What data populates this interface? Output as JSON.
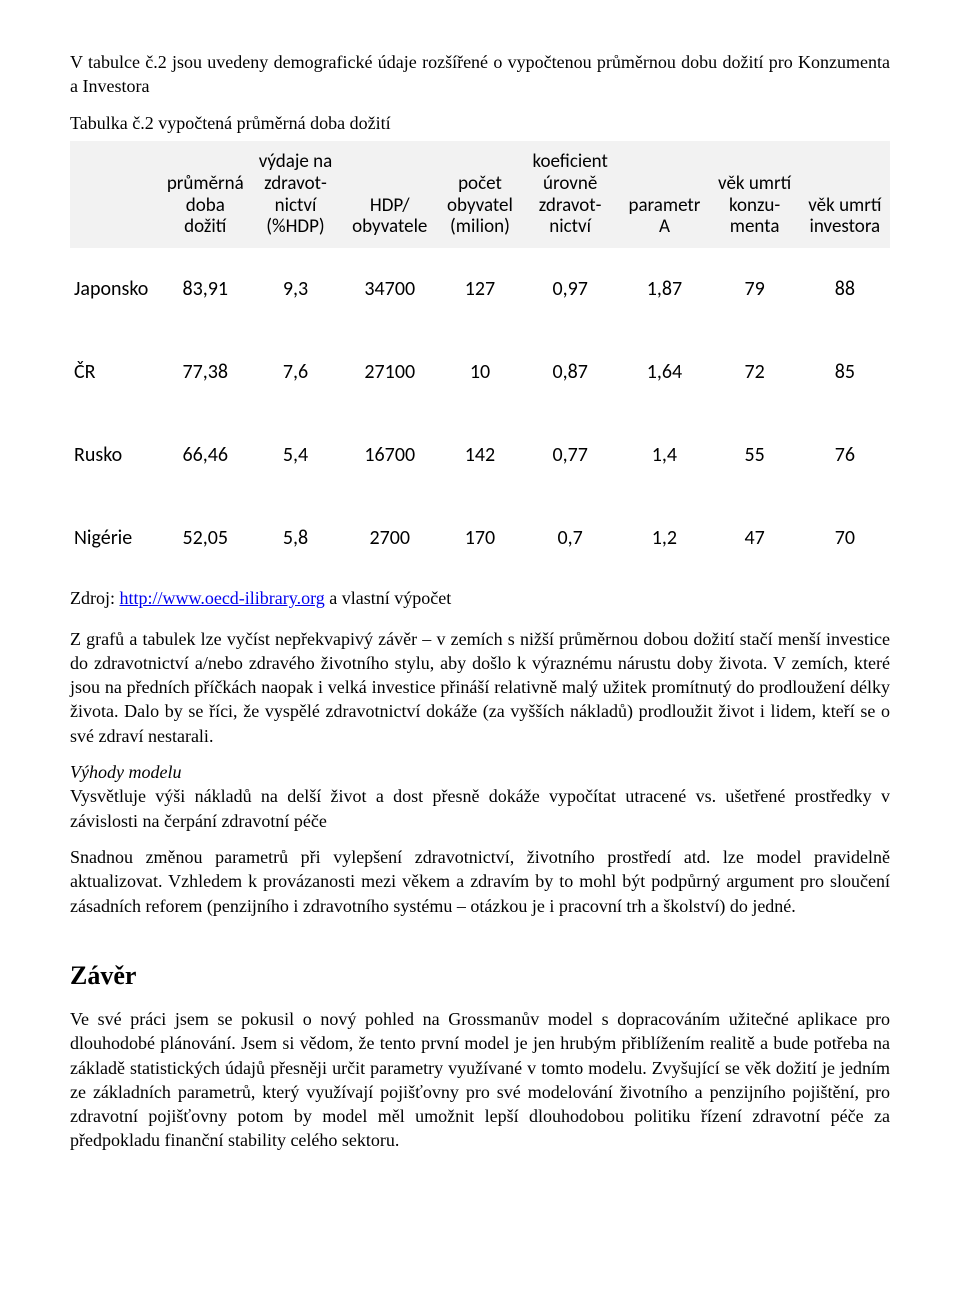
{
  "intro": {
    "text": "V tabulce č.2 jsou uvedeny demografické údaje rozšířené o vypočtenou průměrnou dobu dožití pro Konzumenta a Investora"
  },
  "table": {
    "caption": "Tabulka č.2 vypočtená průměrná doba dožití",
    "columns": [
      "",
      "průměrná doba dožití",
      "výdaje na zdravot­nictví (%HDP)",
      "HDP/ obyvatele",
      "počet obyvatel (milion)",
      "koeficient úrovně zdravot­nictví",
      "parametr A",
      "věk umrtí konzu­menta",
      "věk umrtí investora"
    ],
    "rows": [
      [
        "Japonsko",
        "83,91",
        "9,3",
        "34700",
        "127",
        "0,97",
        "1,87",
        "79",
        "88"
      ],
      [
        "ČR",
        "77,38",
        "7,6",
        "27100",
        "10",
        "0,87",
        "1,64",
        "72",
        "85"
      ],
      [
        "Rusko",
        "66,46",
        "5,4",
        "16700",
        "142",
        "0,77",
        "1,4",
        "55",
        "76"
      ],
      [
        "Nigérie",
        "52,05",
        "5,8",
        "2700",
        "170",
        "0,7",
        "1,2",
        "47",
        "70"
      ]
    ],
    "header_bg": "#f2f2f2",
    "row_bg": "#ffffff"
  },
  "source": {
    "prefix": "Zdroj: ",
    "link_text": "http://www.oecd-ilibrary.org",
    "suffix": " a vlastní výpočet"
  },
  "body": {
    "p1": "Z grafů a tabulek lze vyčíst nepřekvapivý závěr – v zemích s nižší průměrnou dobou dožití stačí menší investice do zdravotnictví a/nebo zdravého životního stylu, aby došlo k výraznému nárustu doby života. V zemích, které jsou na předních příčkách naopak i velká investice přináší relativně malý užitek promítnutý do prodloužení délky života. Dalo by se říci, že vyspělé zdravotnictví dokáže (za vyšších nákladů) prodloužit život i lidem, kteří se o své zdraví nestarali.",
    "advantages_title": "Výhody modelu",
    "p2": "Vysvětluje výši nákladů na delší život a dost přesně dokáže vypočítat utracené vs. ušetřené prostředky v závislosti na čerpání zdravotní péče",
    "p3": "Snadnou změnou parametrů při vylepšení zdravotnictví, životního prostředí atd. lze model pravidelně aktualizovat. Vzhledem k provázanosti mezi věkem a zdravím by to mohl být podpůrný argument pro sloučení zásadních reforem (penzijního i zdravotního systému – otázkou je i pracovní trh a školství) do jedné."
  },
  "conclusion": {
    "heading": "Závěr",
    "p1": "Ve své práci jsem se pokusil o nový pohled na Grossmanův model s dopracováním užitečné aplikace pro dlouhodobé plánování. Jsem si vědom, že tento první model je jen hrubým přiblížením realitě a bude potřeba na základě statistických údajů přesněji určit parametry využívané v tomto modelu. Zvyšující se věk dožití je jedním ze základních parametrů, který využívají pojišťovny pro své modelování životního a penzijního pojištění, pro zdravotní pojišťovny potom by model měl umožnit lepší dlouhodobou politiku řízení zdravotní péče za předpokladu finanční stability celého sektoru."
  }
}
